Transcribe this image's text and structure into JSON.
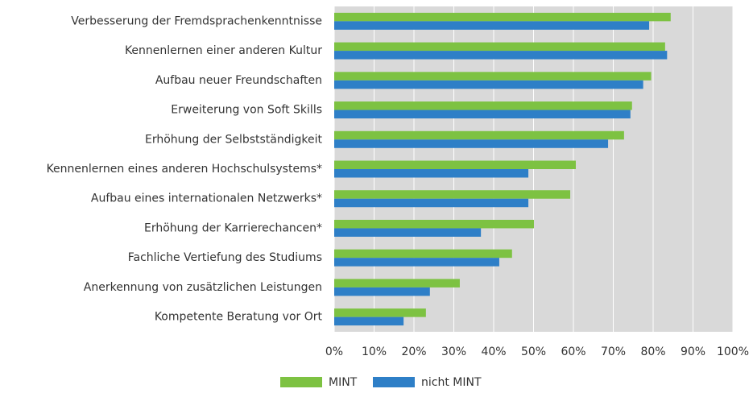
{
  "chart_data": {
    "type": "bar",
    "categories": [
      "Verbesserung der Fremdsprachenkenntnisse",
      "Kennenlernen einer anderen Kultur",
      "Aufbau neuer Freundschaften",
      "Erweiterung von Soft Skills",
      "Erhöhung der Selbstständigkeit",
      "Kennenlernen eines anderen Hochschulsystems*",
      "Aufbau eines internationalen Netzwerks*",
      "Erhöhung der Karrierechancen*",
      "Fachliche Vertiefung des Studiums",
      "Anerkennung von zusätzlichen Leistungen",
      "Kompetente Beratung vor Ort"
    ],
    "series": [
      {
        "name": "MINT",
        "color": "#7dc242",
        "values": [
          84.4,
          83,
          79.5,
          74.7,
          72.7,
          60.6,
          59.2,
          50.1,
          44.6,
          31.5,
          23
        ]
      },
      {
        "name": "nicht MINT",
        "color": "#2e7fc7",
        "values": [
          79,
          83.5,
          77.5,
          74.3,
          68.7,
          48.7,
          48.7,
          36.8,
          41.4,
          24,
          17.4
        ]
      }
    ],
    "xlim": [
      0,
      100
    ],
    "xticks": [
      {
        "value": 0,
        "label": "0%"
      },
      {
        "value": 10,
        "label": "10%"
      },
      {
        "value": 20,
        "label": "20%"
      },
      {
        "value": 30,
        "label": "30%"
      },
      {
        "value": 40,
        "label": "40%"
      },
      {
        "value": 50,
        "label": "50%"
      },
      {
        "value": 60,
        "label": "60%"
      },
      {
        "value": 70,
        "label": "70%"
      },
      {
        "value": 80,
        "label": "80%"
      },
      {
        "value": 90,
        "label": "90%"
      },
      {
        "value": 100,
        "label": "100%"
      }
    ],
    "grid": true,
    "legend": "bottom"
  }
}
